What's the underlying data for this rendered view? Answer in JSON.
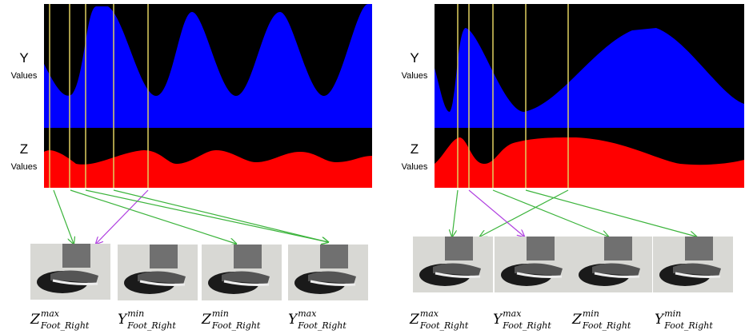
{
  "panels": [
    {
      "y_label": "Y",
      "y_unit": "Values",
      "z_label": "Z",
      "z_unit": "Values",
      "photo_labels": [
        {
          "base": "Z",
          "sup": "max",
          "sub": "Foot_Right"
        },
        {
          "base": "Y",
          "sup": "min",
          "sub": "Foot_Right"
        },
        {
          "base": "Z",
          "sup": "min",
          "sub": "Foot_Right"
        },
        {
          "base": "Y",
          "sup": "max",
          "sub": "Foot_Right"
        }
      ]
    },
    {
      "y_label": "Y",
      "y_unit": "Values",
      "z_label": "Z",
      "z_unit": "Values",
      "photo_labels": [
        {
          "base": "Z",
          "sup": "max",
          "sub": "Foot_Right"
        },
        {
          "base": "Y",
          "sup": "max",
          "sub": "Foot_Right"
        },
        {
          "base": "Z",
          "sup": "min",
          "sub": "Foot_Right"
        },
        {
          "base": "Y",
          "sup": "min",
          "sub": "Foot_Right"
        }
      ]
    }
  ]
}
